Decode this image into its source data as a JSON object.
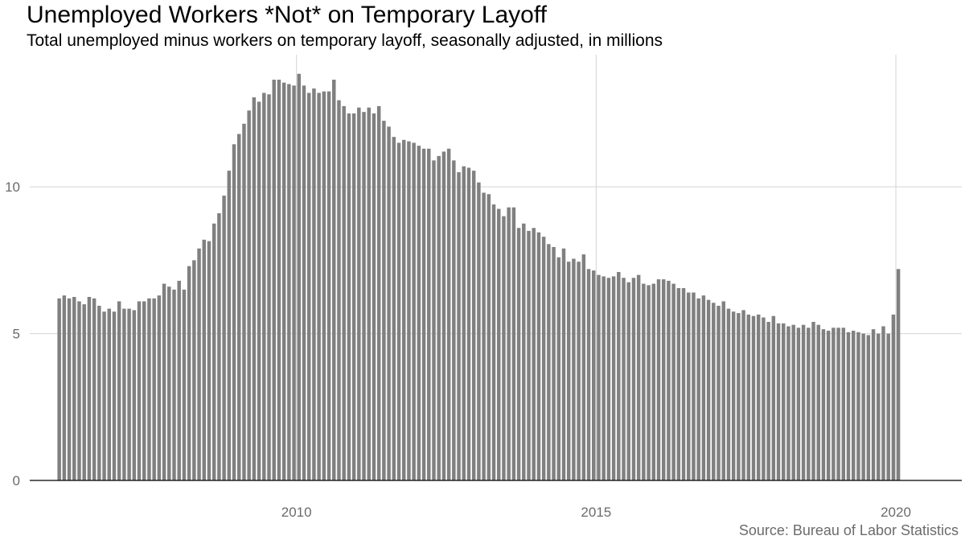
{
  "title": "Unemployed Workers *Not* on Temporary Layoff",
  "subtitle": "Total unemployed minus workers on temporary layoff, seasonally adjusted, in millions",
  "source": "Source: Bureau of Labor Statistics",
  "colors": {
    "bar": "#808080",
    "highlight": "#f8766d",
    "grid": "#d4d4d4",
    "axis": "#000000"
  },
  "chart_data": {
    "type": "bar",
    "title": "Unemployed Workers *Not* on Temporary Layoff",
    "subtitle": "Total unemployed minus workers on temporary layoff, seasonally adjusted, in millions",
    "xlabel": "",
    "ylabel": "",
    "x_start": 2006.0,
    "x_step_months": 1,
    "xlim": [
      2005.55,
      2021.1
    ],
    "ylim": [
      0,
      14.5
    ],
    "x_ticks": [
      2010,
      2015,
      2020
    ],
    "x_tick_labels": [
      "2010",
      "2015",
      "2020"
    ],
    "y_ticks": [
      0,
      5,
      10
    ],
    "y_tick_labels": [
      "0",
      "5",
      "10"
    ],
    "grid": true,
    "legend": "none",
    "highlight_from_index": 170,
    "series": [
      {
        "values": [
          6.2,
          6.3,
          6.2,
          6.25,
          6.1,
          6.0,
          6.25,
          6.2,
          5.95,
          5.75,
          5.85,
          5.75,
          6.1,
          5.85,
          5.85,
          5.8,
          6.1,
          6.1,
          6.2,
          6.2,
          6.3,
          6.7,
          6.6,
          6.5,
          6.8,
          6.5,
          7.3,
          7.5,
          7.9,
          8.2,
          8.15,
          8.75,
          9.1,
          9.7,
          10.55,
          11.45,
          11.8,
          12.15,
          12.6,
          13.05,
          12.9,
          13.2,
          13.15,
          13.65,
          13.65,
          13.55,
          13.5,
          13.45,
          13.85,
          13.45,
          13.2,
          13.35,
          13.2,
          13.25,
          13.25,
          13.65,
          12.95,
          12.75,
          12.5,
          12.5,
          12.7,
          12.55,
          12.7,
          12.5,
          12.75,
          12.25,
          12.05,
          11.7,
          11.5,
          11.6,
          11.55,
          11.5,
          11.4,
          11.3,
          11.3,
          10.9,
          11.05,
          11.2,
          11.3,
          10.9,
          10.5,
          10.7,
          10.65,
          10.55,
          10.15,
          9.8,
          9.75,
          9.4,
          9.25,
          9.0,
          9.3,
          9.3,
          8.6,
          8.75,
          8.5,
          8.6,
          8.45,
          8.3,
          8.05,
          7.95,
          7.6,
          7.9,
          7.45,
          7.55,
          7.45,
          7.7,
          7.2,
          7.15,
          7.0,
          6.95,
          6.9,
          6.95,
          7.1,
          6.9,
          6.75,
          6.9,
          7.0,
          6.7,
          6.65,
          6.7,
          6.85,
          6.85,
          6.8,
          6.7,
          6.55,
          6.55,
          6.4,
          6.4,
          6.2,
          6.3,
          6.15,
          6.05,
          5.95,
          6.1,
          5.85,
          5.75,
          5.7,
          5.8,
          5.65,
          5.6,
          5.65,
          5.55,
          5.4,
          5.6,
          5.35,
          5.35,
          5.25,
          5.3,
          5.2,
          5.3,
          5.2,
          5.4,
          5.3,
          5.15,
          5.1,
          5.2,
          5.2,
          5.2,
          5.05,
          5.1,
          5.05,
          5.0,
          4.95,
          5.15,
          5.0,
          5.25,
          5.0,
          5.65,
          7.2
        ]
      }
    ]
  }
}
